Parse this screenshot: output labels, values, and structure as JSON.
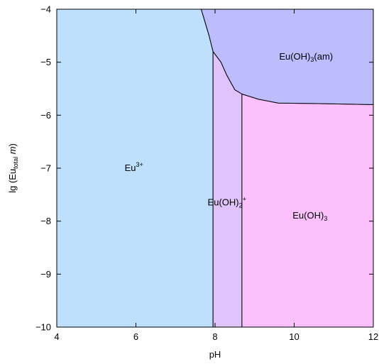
{
  "chart_data": {
    "type": "area",
    "chart_kind": "predominance-diagram",
    "xlabel": "pH",
    "ylabel": {
      "prefix": "lg (Eu",
      "subscript": "total",
      "suffix_italic": "m",
      "suffix": ")"
    },
    "xlim": [
      4,
      12
    ],
    "ylim": [
      -10,
      -4
    ],
    "xticks": [
      4,
      6,
      8,
      10,
      12
    ],
    "yticks": [
      -4,
      -5,
      -6,
      -7,
      -8,
      -9,
      -10
    ],
    "grid": false,
    "regions": [
      {
        "name": "Eu3+",
        "label": {
          "base": "Eu",
          "sup": "3+",
          "sub": ""
        },
        "color": "#bee0fc",
        "label_at": [
          5.95,
          -7.0
        ],
        "polygon": [
          [
            4,
            -10
          ],
          [
            7.95,
            -10
          ],
          [
            7.95,
            -4.8
          ],
          [
            7.85,
            -4.5
          ],
          [
            7.75,
            -4.25
          ],
          [
            7.65,
            -4.0
          ],
          [
            4,
            -4
          ]
        ]
      },
      {
        "name": "Eu(OH)2+",
        "label": {
          "base": "Eu(OH)",
          "sub": "2",
          "sup": "+"
        },
        "color": "#e0c3fc",
        "label_at": [
          8.3,
          -7.65
        ],
        "polygon": [
          [
            7.95,
            -10
          ],
          [
            8.68,
            -10
          ],
          [
            8.68,
            -5.6
          ],
          [
            8.5,
            -5.52
          ],
          [
            8.3,
            -5.25
          ],
          [
            8.15,
            -5.0
          ],
          [
            7.95,
            -4.8
          ]
        ]
      },
      {
        "name": "Eu(OH)3",
        "label": {
          "base": "Eu(OH)",
          "sub": "3",
          "sup": ""
        },
        "color": "#fcc1fc",
        "label_at": [
          10.4,
          -7.9
        ],
        "polygon": [
          [
            8.68,
            -10
          ],
          [
            12,
            -10
          ],
          [
            12,
            -5.8
          ],
          [
            10.5,
            -5.78
          ],
          [
            9.6,
            -5.77
          ],
          [
            9.1,
            -5.7
          ],
          [
            8.68,
            -5.6
          ]
        ]
      },
      {
        "name": "Eu(OH)3(am)",
        "label": {
          "base": "Eu(OH)",
          "sub": "3",
          "sup": "",
          "suffix": "(am)"
        },
        "color": "#bdbcfc",
        "label_at": [
          10.3,
          -4.9
        ],
        "polygon": [
          [
            7.65,
            -4.0
          ],
          [
            12,
            -4.0
          ],
          [
            12,
            -5.8
          ],
          [
            10.5,
            -5.78
          ],
          [
            9.6,
            -5.77
          ],
          [
            9.1,
            -5.7
          ],
          [
            8.68,
            -5.6
          ],
          [
            8.5,
            -5.52
          ],
          [
            8.3,
            -5.25
          ],
          [
            8.15,
            -5.0
          ],
          [
            7.95,
            -4.8
          ],
          [
            7.85,
            -4.5
          ],
          [
            7.75,
            -4.25
          ]
        ]
      }
    ]
  }
}
